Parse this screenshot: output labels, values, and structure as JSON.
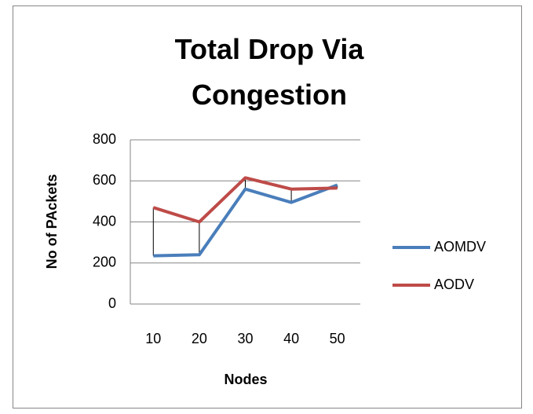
{
  "chart_data": {
    "type": "line",
    "title": "Total Drop Via Congestion",
    "x_label": "Nodes",
    "y_label": "No of PAckets",
    "categories": [
      "10",
      "20",
      "30",
      "40",
      "50"
    ],
    "series": [
      {
        "name": "AOMDV",
        "color": "#4a7ebb",
        "values": [
          235,
          240,
          560,
          495,
          580
        ]
      },
      {
        "name": "AODV",
        "color": "#be4b48",
        "values": [
          470,
          400,
          615,
          560,
          565
        ]
      }
    ],
    "ylim": [
      0,
      800
    ],
    "yticks": [
      0,
      200,
      400,
      600,
      800
    ],
    "grid": true,
    "high_low_lines": true,
    "legend": "right"
  }
}
